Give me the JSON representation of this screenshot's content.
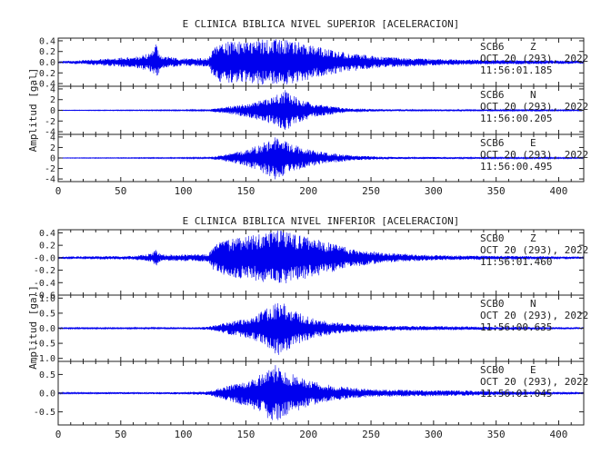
{
  "colors": {
    "trace": "#0000ee",
    "axis": "#222222"
  },
  "chart_data": [
    {
      "type": "line",
      "title": "E CLINICA BIBLICA NIVEL SUPERIOR [ACELERACION]",
      "ylabel": "Amplitud [gal]",
      "xlabel": "",
      "xlim": [
        0,
        420
      ],
      "x_ticks": [
        "0",
        "50",
        "100",
        "150",
        "200",
        "250",
        "300",
        "350",
        "400"
      ],
      "grid": false,
      "panels": [
        {
          "station": "SCB6",
          "component": "Z",
          "date": "OCT 20 (293), 2022",
          "time": "11:56:01.185",
          "ylim": [
            -0.45,
            0.45
          ],
          "y_ticks": [
            "0.4",
            "0.2",
            "0.0",
            "-0.2",
            "-0.4"
          ],
          "envelope": [
            {
              "x": 0,
              "amp": 0.02
            },
            {
              "x": 20,
              "amp": 0.04
            },
            {
              "x": 45,
              "amp": 0.08
            },
            {
              "x": 60,
              "amp": 0.1
            },
            {
              "x": 75,
              "amp": 0.18
            },
            {
              "x": 78,
              "amp": 0.35
            },
            {
              "x": 82,
              "amp": 0.12
            },
            {
              "x": 100,
              "amp": 0.07
            },
            {
              "x": 120,
              "amp": 0.08
            },
            {
              "x": 124,
              "amp": 0.3
            },
            {
              "x": 130,
              "amp": 0.38
            },
            {
              "x": 150,
              "amp": 0.4
            },
            {
              "x": 172,
              "amp": 0.44
            },
            {
              "x": 190,
              "amp": 0.4
            },
            {
              "x": 205,
              "amp": 0.3
            },
            {
              "x": 230,
              "amp": 0.18
            },
            {
              "x": 260,
              "amp": 0.1
            },
            {
              "x": 300,
              "amp": 0.06
            },
            {
              "x": 350,
              "amp": 0.04
            },
            {
              "x": 420,
              "amp": 0.03
            }
          ]
        },
        {
          "station": "SCB6",
          "component": "N",
          "date": "OCT 20 (293), 2022",
          "time": "11:56:00.205",
          "ylim": [
            -4.5,
            4.5
          ],
          "y_ticks": [
            "4",
            "2",
            "0",
            "-2",
            "-4"
          ],
          "envelope": [
            {
              "x": 0,
              "amp": 0.05
            },
            {
              "x": 100,
              "amp": 0.1
            },
            {
              "x": 120,
              "amp": 0.15
            },
            {
              "x": 130,
              "amp": 0.5
            },
            {
              "x": 150,
              "amp": 1.2
            },
            {
              "x": 165,
              "amp": 2.2
            },
            {
              "x": 175,
              "amp": 3.0
            },
            {
              "x": 182,
              "amp": 4.0
            },
            {
              "x": 190,
              "amp": 2.5
            },
            {
              "x": 205,
              "amp": 1.2
            },
            {
              "x": 230,
              "amp": 0.4
            },
            {
              "x": 260,
              "amp": 0.2
            },
            {
              "x": 420,
              "amp": 0.1
            }
          ]
        },
        {
          "station": "SCB6",
          "component": "E",
          "date": "OCT 20 (293), 2022",
          "time": "11:56:00.495",
          "ylim": [
            -4.5,
            4.5
          ],
          "y_ticks": [
            "4",
            "2",
            "0",
            "-2",
            "-4"
          ],
          "envelope": [
            {
              "x": 0,
              "amp": 0.05
            },
            {
              "x": 100,
              "amp": 0.1
            },
            {
              "x": 120,
              "amp": 0.15
            },
            {
              "x": 130,
              "amp": 0.5
            },
            {
              "x": 150,
              "amp": 1.5
            },
            {
              "x": 165,
              "amp": 3.0
            },
            {
              "x": 172,
              "amp": 4.2
            },
            {
              "x": 180,
              "amp": 3.5
            },
            {
              "x": 195,
              "amp": 2.0
            },
            {
              "x": 215,
              "amp": 1.0
            },
            {
              "x": 240,
              "amp": 0.4
            },
            {
              "x": 270,
              "amp": 0.2
            },
            {
              "x": 420,
              "amp": 0.1
            }
          ]
        }
      ]
    },
    {
      "type": "line",
      "title": "E CLINICA BIBLICA NIVEL INFERIOR [ACELERACION]",
      "ylabel": "Amplitud [gal]",
      "xlabel": "",
      "xlim": [
        0,
        420
      ],
      "x_ticks": [
        "0",
        "50",
        "100",
        "150",
        "200",
        "250",
        "300",
        "350",
        "400"
      ],
      "grid": false,
      "panels": [
        {
          "station": "SCB0",
          "component": "Z",
          "date": "OCT 20 (293), 2022",
          "time": "11:56:01.460",
          "ylim": [
            -0.6,
            0.45
          ],
          "y_ticks": [
            "0.4",
            "0.2",
            "-0.0",
            "-0.2",
            "-0.4",
            "-0.6"
          ],
          "envelope": [
            {
              "x": 0,
              "amp": 0.02
            },
            {
              "x": 60,
              "amp": 0.03
            },
            {
              "x": 75,
              "amp": 0.07
            },
            {
              "x": 78,
              "amp": 0.15
            },
            {
              "x": 82,
              "amp": 0.05
            },
            {
              "x": 120,
              "amp": 0.06
            },
            {
              "x": 124,
              "amp": 0.2
            },
            {
              "x": 135,
              "amp": 0.3
            },
            {
              "x": 160,
              "amp": 0.38
            },
            {
              "x": 178,
              "amp": 0.45
            },
            {
              "x": 190,
              "amp": 0.38
            },
            {
              "x": 210,
              "amp": 0.28
            },
            {
              "x": 235,
              "amp": 0.15
            },
            {
              "x": 260,
              "amp": 0.08
            },
            {
              "x": 300,
              "amp": 0.04
            },
            {
              "x": 420,
              "amp": 0.02
            }
          ]
        },
        {
          "station": "SCB0",
          "component": "N",
          "date": "OCT 20 (293), 2022",
          "time": "11:56:00.635",
          "ylim": [
            -1.1,
            1.1
          ],
          "y_ticks": [
            "1.0",
            "0.5",
            "0.0",
            "-0.5",
            "-1.0"
          ],
          "envelope": [
            {
              "x": 0,
              "amp": 0.02
            },
            {
              "x": 100,
              "amp": 0.03
            },
            {
              "x": 120,
              "amp": 0.05
            },
            {
              "x": 135,
              "amp": 0.2
            },
            {
              "x": 155,
              "amp": 0.35
            },
            {
              "x": 170,
              "amp": 0.75
            },
            {
              "x": 178,
              "amp": 0.95
            },
            {
              "x": 188,
              "amp": 0.6
            },
            {
              "x": 205,
              "amp": 0.3
            },
            {
              "x": 230,
              "amp": 0.15
            },
            {
              "x": 260,
              "amp": 0.08
            },
            {
              "x": 420,
              "amp": 0.03
            }
          ]
        },
        {
          "station": "SCB0",
          "component": "E",
          "date": "OCT 20 (293), 2022",
          "time": "11:56:01.045",
          "ylim": [
            -0.85,
            0.85
          ],
          "y_ticks": [
            "0.5",
            "0.0",
            "-0.5"
          ],
          "envelope": [
            {
              "x": 0,
              "amp": 0.02
            },
            {
              "x": 100,
              "amp": 0.03
            },
            {
              "x": 120,
              "amp": 0.05
            },
            {
              "x": 135,
              "amp": 0.2
            },
            {
              "x": 155,
              "amp": 0.4
            },
            {
              "x": 165,
              "amp": 0.6
            },
            {
              "x": 172,
              "amp": 0.8
            },
            {
              "x": 182,
              "amp": 0.6
            },
            {
              "x": 200,
              "amp": 0.35
            },
            {
              "x": 220,
              "amp": 0.2
            },
            {
              "x": 250,
              "amp": 0.1
            },
            {
              "x": 420,
              "amp": 0.03
            }
          ]
        }
      ]
    }
  ]
}
